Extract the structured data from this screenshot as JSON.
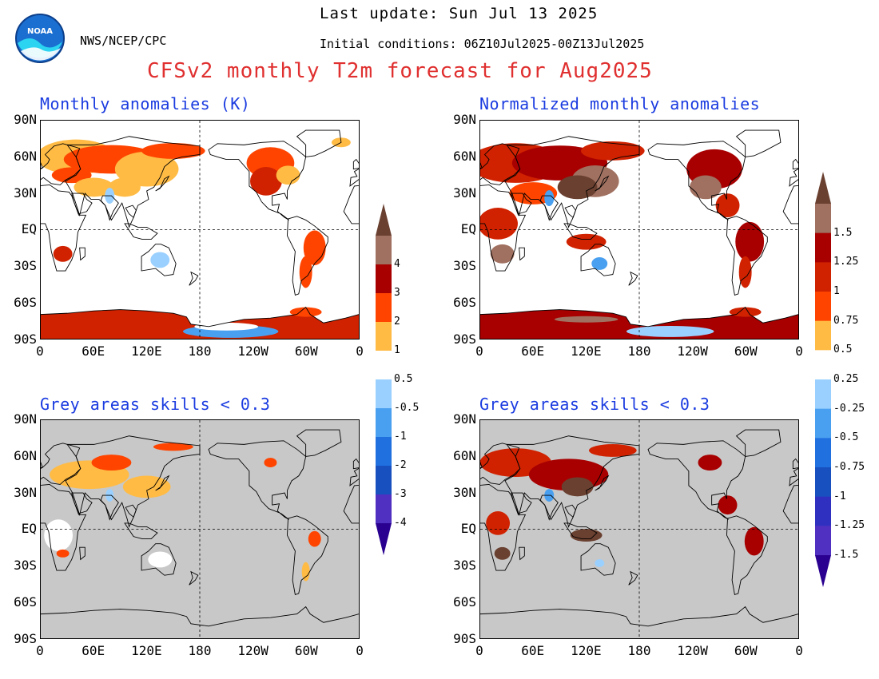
{
  "header": {
    "agency": "NWS/NCEP/CPC",
    "last_update": "Last update: Sun Jul 13 2025",
    "initial_conditions": "Initial conditions: 06Z10Jul2025-00Z13Jul2025",
    "title": "CFSv2 monthly T2m forecast for Aug2025",
    "logo_text": "NOAA"
  },
  "panels": {
    "top_left": {
      "title": "Monthly anomalies (K)"
    },
    "top_right": {
      "title": "Normalized monthly anomalies"
    },
    "bottom_left": {
      "title": "Grey areas skills < 0.3"
    },
    "bottom_right": {
      "title": "Grey areas skills < 0.3"
    }
  },
  "axes": {
    "lat_ticks": [
      "90N",
      "60N",
      "30N",
      "EQ",
      "30S",
      "60S",
      "90S"
    ],
    "lon_ticks": [
      "0",
      "60E",
      "120E",
      "180",
      "120W",
      "60W",
      "0"
    ]
  },
  "colorbar_k": {
    "labels": [
      "4",
      "3",
      "2",
      "1",
      "0.5",
      "-0.5",
      "-1",
      "-2",
      "-3",
      "-4"
    ]
  },
  "colorbar_norm": {
    "labels": [
      "1.5",
      "1.25",
      "1",
      "0.75",
      "0.5",
      "0.25",
      "-0.25",
      "-0.5",
      "-0.75",
      "-1",
      "-1.25",
      "-1.5"
    ]
  },
  "colors": {
    "warm": [
      "#ffbb44",
      "#ff4400",
      "#d02200",
      "#a80000",
      "#a07060",
      "#6a4030"
    ],
    "cold": [
      "#9ad0ff",
      "#4aa0f0",
      "#2070e0",
      "#1850c0",
      "#5030c0",
      "#2a0090"
    ],
    "grey_mask": "#c8c8c8",
    "title_red": "#e03030",
    "panel_blue": "#1a3be0"
  }
}
